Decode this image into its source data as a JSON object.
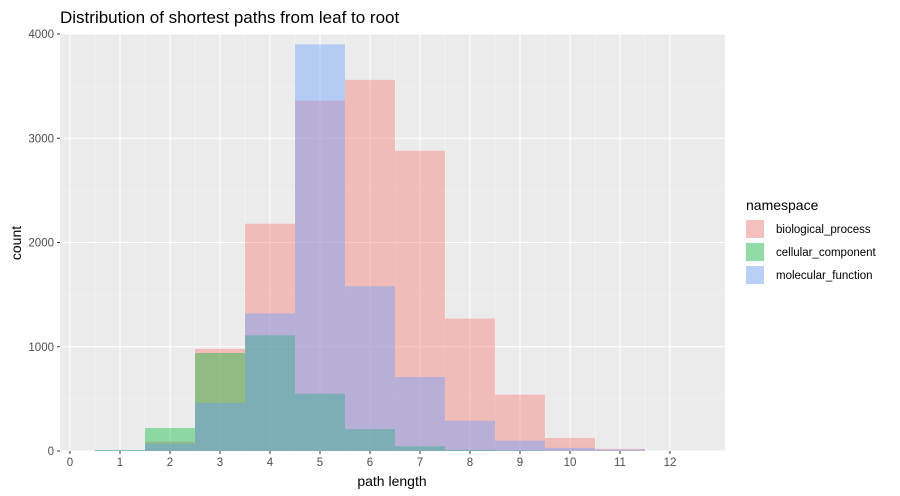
{
  "chart_data": {
    "type": "bar",
    "subtype": "overlapping-histogram",
    "title": "Distribution of shortest paths from leaf to root",
    "xlabel": "path length",
    "ylabel": "count",
    "xlim": [
      -0.2,
      13.1
    ],
    "ylim": [
      0,
      4000
    ],
    "x_ticks": [
      0,
      1,
      2,
      3,
      4,
      5,
      6,
      7,
      8,
      9,
      10,
      11,
      12
    ],
    "y_ticks": [
      0,
      1000,
      2000,
      3000,
      4000
    ],
    "bin_width": 1,
    "grid": true,
    "legend_position": "right",
    "legend_title": "namespace",
    "series": [
      {
        "name": "biological_process",
        "color": "#F8766D",
        "x": [
          1,
          2,
          3,
          4,
          5,
          6,
          7,
          8,
          9,
          10,
          11
        ],
        "values": [
          5,
          90,
          980,
          2180,
          3360,
          3560,
          2880,
          1270,
          540,
          125,
          20
        ]
      },
      {
        "name": "cellular_component",
        "color": "#00BA38",
        "x": [
          1,
          2,
          3,
          4,
          5,
          6,
          7,
          8,
          9,
          10,
          11
        ],
        "values": [
          10,
          220,
          940,
          1110,
          550,
          210,
          45,
          10,
          5,
          2,
          0
        ]
      },
      {
        "name": "molecular_function",
        "color": "#619CFF",
        "x": [
          1,
          2,
          3,
          4,
          5,
          6,
          7,
          8,
          9,
          10,
          11
        ],
        "values": [
          5,
          70,
          460,
          1320,
          3900,
          1580,
          710,
          290,
          100,
          30,
          15
        ]
      }
    ]
  }
}
